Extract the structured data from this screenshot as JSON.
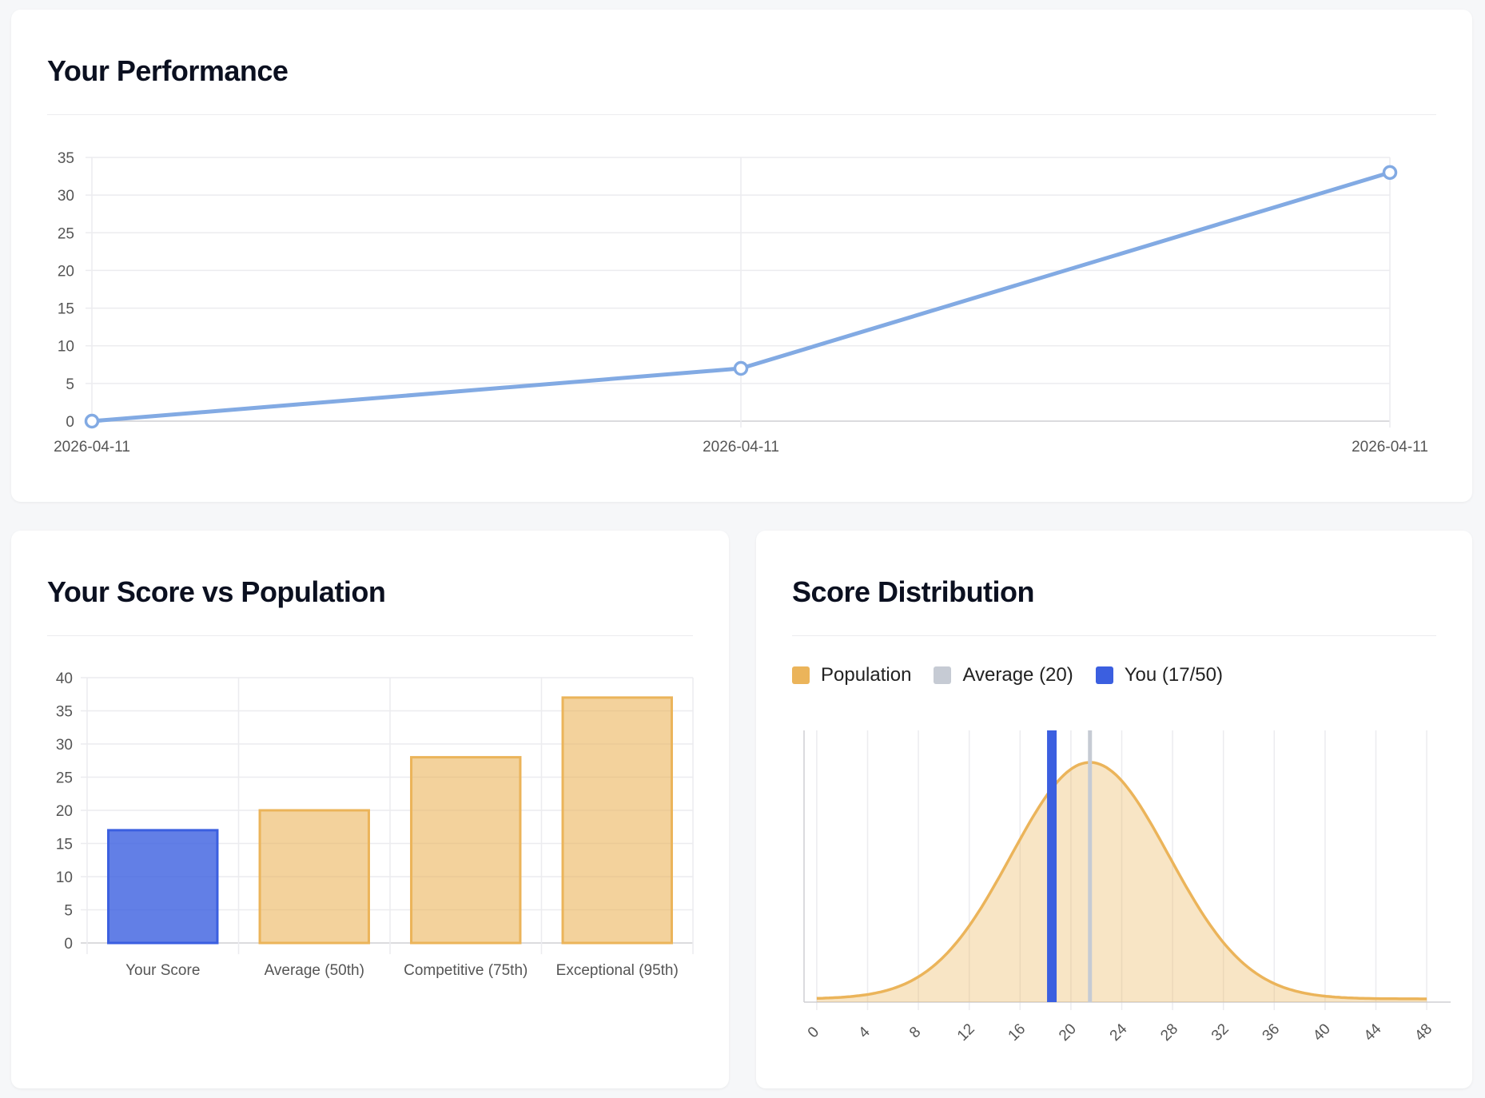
{
  "performance": {
    "title": "Your Performance"
  },
  "comparison": {
    "title": "Your Score vs Population"
  },
  "distribution": {
    "title": "Score Distribution",
    "legend": [
      {
        "label": "Population",
        "color": "#ebb45a"
      },
      {
        "label": "Average (20)",
        "color": "#c6cbd4"
      },
      {
        "label": "You (17/50)",
        "color": "#3b5fe0"
      }
    ]
  },
  "colors": {
    "line": "#82aae3",
    "you": "#3b5fe0",
    "population": "#ebb45a",
    "average": "#c6cbd4"
  },
  "chart_data": [
    {
      "type": "line",
      "title": "Your Performance",
      "categories": [
        "2026-04-11",
        "2026-04-11",
        "2026-04-11"
      ],
      "values": [
        0,
        7,
        33
      ],
      "ylim": [
        0,
        35
      ],
      "yticks": [
        0,
        5,
        10,
        15,
        20,
        25,
        30,
        35
      ],
      "grid": true
    },
    {
      "type": "bar",
      "title": "Your Score vs Population",
      "categories": [
        "Your Score",
        "Average (50th)",
        "Competitive (75th)",
        "Exceptional (95th)"
      ],
      "values": [
        17,
        20,
        28,
        37
      ],
      "highlight": [
        true,
        false,
        false,
        false
      ],
      "ylim": [
        0,
        40
      ],
      "yticks": [
        0,
        5,
        10,
        15,
        20,
        25,
        30,
        35,
        40
      ],
      "grid": true
    },
    {
      "type": "area",
      "title": "Score Distribution",
      "mean": 21.5,
      "sd": 6.2,
      "xlim": [
        -1,
        49
      ],
      "xticks": [
        0,
        4,
        8,
        12,
        16,
        20,
        24,
        28,
        32,
        36,
        40,
        44,
        48
      ],
      "average_marker": 21.5,
      "you_marker": 18.5,
      "grid": true
    }
  ]
}
